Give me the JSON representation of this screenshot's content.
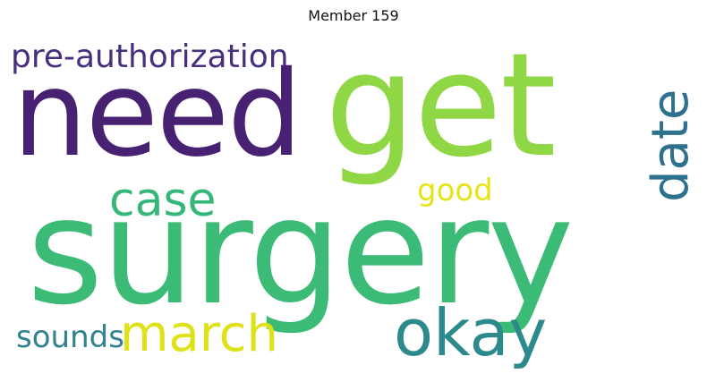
{
  "title": "Member 159",
  "words": {
    "pre_authorization": "pre-authorization",
    "need": "need",
    "get": "get",
    "date": "date",
    "case": "case",
    "good": "good",
    "surgery": "surgery",
    "sounds": "sounds",
    "march": "march",
    "okay": "okay"
  },
  "colors": {
    "pre_authorization": "#472f7d",
    "need": "#482173",
    "get": "#8fd744",
    "date": "#2d718e",
    "case": "#35b779",
    "good": "#e5e419",
    "surgery": "#3bbb75",
    "sounds": "#31818e",
    "march": "#dde318",
    "okay": "#2c8a8d"
  }
}
